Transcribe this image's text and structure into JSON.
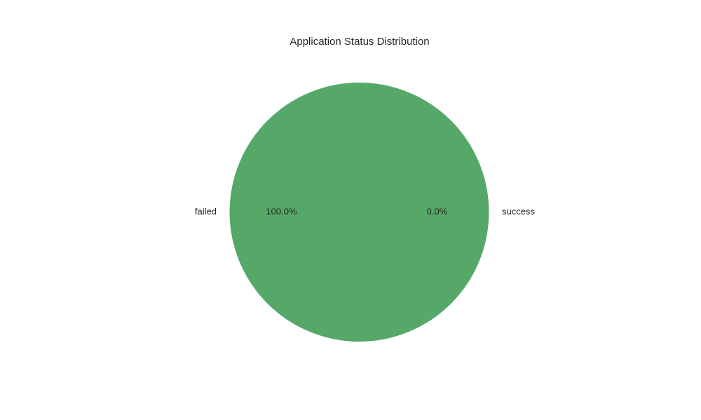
{
  "chart_data": {
    "type": "pie",
    "title": "Application Status Distribution",
    "categories": [
      "failed",
      "success"
    ],
    "values": [
      100.0,
      0.0
    ],
    "percent_labels": [
      "100.0%",
      "0.0%"
    ],
    "colors": [
      "#55a868",
      "#4c72b0"
    ],
    "start_angle_deg": 0,
    "legend": "none"
  }
}
